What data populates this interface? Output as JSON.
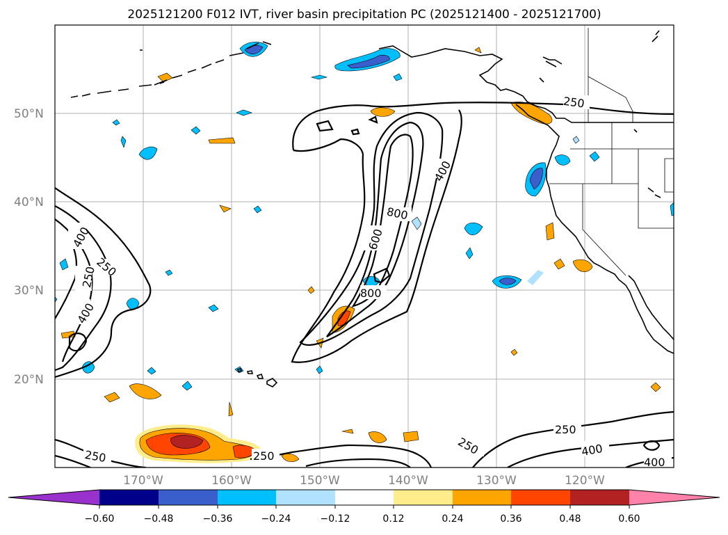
{
  "title": "2025121200 F012 IVT, river basin precipitation PC (2025121400 - 2025121700)",
  "lat_labels": [
    "50°N",
    "40°N",
    "30°N",
    "20°N"
  ],
  "lon_labels": [
    "170°W",
    "160°W",
    "150°W",
    "140°W",
    "130°W",
    "120°W"
  ],
  "contour_labels": [
    "250",
    "400",
    "600",
    "800",
    "400",
    "250",
    "800",
    "400",
    "250",
    "250",
    "250",
    "250",
    "400",
    "400",
    "250",
    "250"
  ],
  "colorbar": {
    "ticks": [
      "−0.60",
      "−0.48",
      "−0.36",
      "−0.24",
      "−0.12",
      "0.12",
      "0.24",
      "0.36",
      "0.48",
      "0.60"
    ],
    "colors": [
      "#9932cc",
      "#00008b",
      "#3a5fcd",
      "#00bfff",
      "#b0e2ff",
      "#ffffff",
      "#ffec8b",
      "#ffa500",
      "#ff4500",
      "#b22222",
      "#ff82ab"
    ]
  },
  "map_data": {
    "contour_levels": [
      250,
      400,
      600,
      800
    ],
    "colorbar_levels": [
      -0.6,
      -0.48,
      -0.36,
      -0.24,
      -0.12,
      0.12,
      0.24,
      0.36,
      0.48,
      0.6
    ]
  }
}
